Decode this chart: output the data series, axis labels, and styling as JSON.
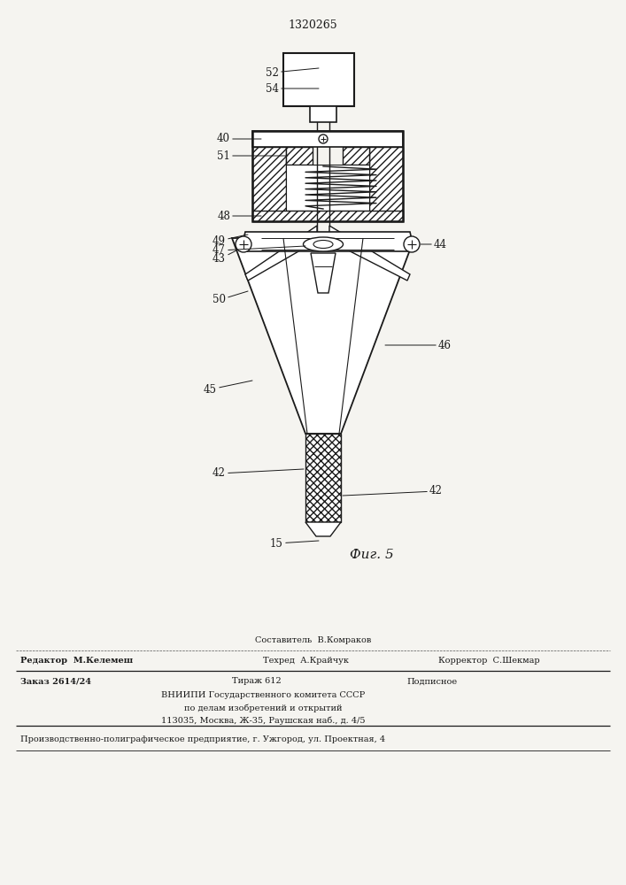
{
  "patent_number": "1320265",
  "fig_label": "Фиг. 5",
  "bg_color": "#f5f4f0",
  "lc": "#1a1a1a",
  "footer": {
    "sestavitel": "Составитель  В.Комраков",
    "redaktor": "Редактор  М.Келемеш",
    "tehred": "Техред  А.Крайчук",
    "korrektor": "Корректор  С.Шекмар",
    "zakaz": "Заказ 2614/24",
    "tirazh": "Тираж 612",
    "podpisnoe": "Подписное",
    "vniiipi": "ВНИИПИ Государственного комитета СССР",
    "po_delam": "по делам изобретений и открытий",
    "address": "113035, Москва, Ж-35, Раушская наб., д. 4/5",
    "proizv": "Производственно-полиграфическое предприятие, г. Ужгород, ул. Проектная, 4"
  }
}
